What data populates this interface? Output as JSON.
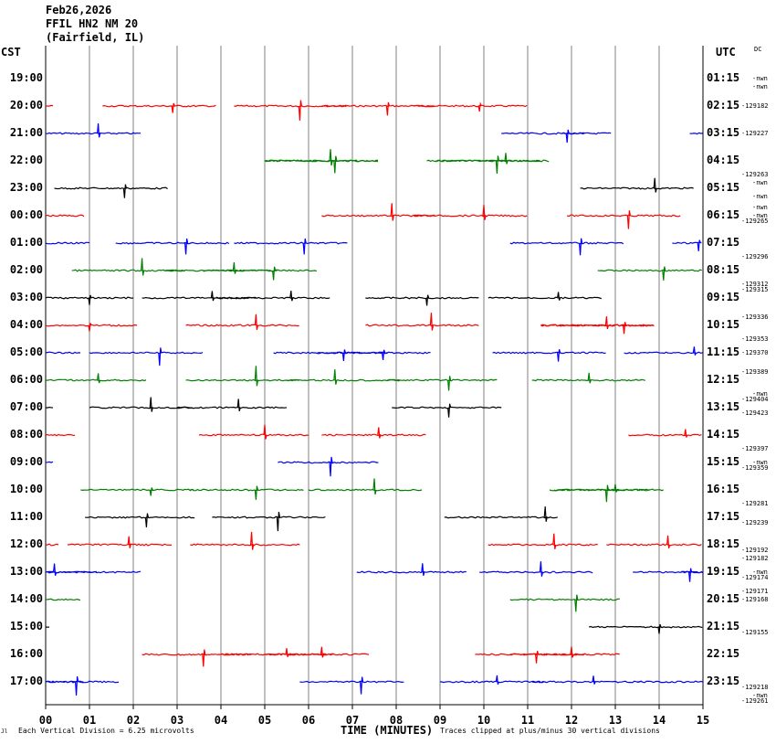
{
  "header": {
    "date": "Feb26,2026",
    "station": "FFIL HN2 NM 20",
    "location": "(Fairfield, IL)"
  },
  "left_tz": "CST",
  "right_tz": "UTC",
  "dc_label": "DC",
  "left_times": [
    "19:00",
    "20:00",
    "21:00",
    "22:00",
    "23:00",
    "00:00",
    "01:00",
    "02:00",
    "03:00",
    "04:00",
    "05:00",
    "06:00",
    "07:00",
    "08:00",
    "09:00",
    "10:00",
    "11:00",
    "12:00",
    "13:00",
    "14:00",
    "15:00",
    "16:00",
    "17:00"
  ],
  "right_times": [
    "01:15",
    "02:15",
    "03:15",
    "04:15",
    "05:15",
    "06:15",
    "07:15",
    "08:15",
    "09:15",
    "10:15",
    "11:15",
    "12:15",
    "13:15",
    "14:15",
    "15:15",
    "16:15",
    "17:15",
    "18:15",
    "19:15",
    "20:15",
    "21:15",
    "22:15",
    "23:15"
  ],
  "dc_values": [
    {
      "text": "-nwn",
      "row": 0.0
    },
    {
      "text": "-nwn",
      "row": 0.3
    },
    {
      "text": "-129182",
      "row": 1.0
    },
    {
      "text": "-129227",
      "row": 2.0
    },
    {
      "text": "-129263",
      "row": 3.5
    },
    {
      "text": "-nwn",
      "row": 3.8
    },
    {
      "text": "-nwn",
      "row": 4.3
    },
    {
      "text": "-nwn",
      "row": 4.7
    },
    {
      "text": "-nwn",
      "row": 5.0
    },
    {
      "text": "-129265",
      "row": 5.2
    },
    {
      "text": "-129296",
      "row": 6.5
    },
    {
      "text": "-129312",
      "row": 7.5
    },
    {
      "text": "-129315",
      "row": 7.7
    },
    {
      "text": "-129336",
      "row": 8.7
    },
    {
      "text": "-129353",
      "row": 9.5
    },
    {
      "text": "-129370",
      "row": 10.0
    },
    {
      "text": "-129389",
      "row": 10.7
    },
    {
      "text": "-nwn",
      "row": 11.5
    },
    {
      "text": "-129404",
      "row": 11.7
    },
    {
      "text": "-129423",
      "row": 12.2
    },
    {
      "text": "-129397",
      "row": 13.5
    },
    {
      "text": "-nwn",
      "row": 14.0
    },
    {
      "text": "-129359",
      "row": 14.2
    },
    {
      "text": "-129281",
      "row": 15.5
    },
    {
      "text": "-129239",
      "row": 16.2
    },
    {
      "text": "-129192",
      "row": 17.2
    },
    {
      "text": "-129182",
      "row": 17.5
    },
    {
      "text": "-nwn",
      "row": 18.0
    },
    {
      "text": "-129174",
      "row": 18.2
    },
    {
      "text": "-129171",
      "row": 18.7
    },
    {
      "text": "-129168",
      "row": 19.0
    },
    {
      "text": "-129155",
      "row": 20.2
    },
    {
      "text": "-129218",
      "row": 22.2
    },
    {
      "text": "-nwn",
      "row": 22.5
    },
    {
      "text": "-129261",
      "row": 22.7
    }
  ],
  "footer": {
    "division_note": "Each Vertical Division =    6.25 microvolts",
    "clip_note": "Traces clipped at plus/minus 30 vertical divisions",
    "logo": "Jl"
  },
  "colors": {
    "trace_cycle": [
      "#000000",
      "#ff0000",
      "#0000ff",
      "#008000"
    ],
    "grid": "#808080"
  },
  "chart_data": {
    "type": "line",
    "title": "Feb26,2026 FFIL HN2 NM 20 (Fairfield, IL)",
    "xlabel": "TIME (MINUTES)",
    "ylabel": "CST",
    "x_ticks": [
      "00",
      "01",
      "02",
      "03",
      "04",
      "05",
      "06",
      "07",
      "08",
      "09",
      "10",
      "11",
      "12",
      "13",
      "14",
      "15"
    ],
    "xlim": [
      0,
      15
    ],
    "row_interval_minutes": 30,
    "segments": [
      {
        "row": 1,
        "start": 0,
        "end": 0.2,
        "spike": null
      },
      {
        "row": 1,
        "start": 6.3,
        "end": 8.9,
        "spike": 7.8
      },
      {
        "row": 1,
        "start": 8.4,
        "end": 11.0,
        "spike": 9.9
      },
      {
        "row": 1,
        "start": 4.3,
        "end": 6.9,
        "spike": 5.8
      },
      {
        "row": 2,
        "start": 0,
        "end": 2.2,
        "spike": 1.2
      },
      {
        "row": 1,
        "start": 1.3,
        "end": 3.9,
        "spike": 2.9
      },
      {
        "row": 2,
        "start": 10.4,
        "end": 12.9,
        "spike": 11.9
      },
      {
        "row": 2,
        "start": 11.8,
        "end": 12.3,
        "spike": null
      },
      {
        "row": 2,
        "start": 14.7,
        "end": 15,
        "spike": null
      },
      {
        "row": 3,
        "start": 5.0,
        "end": 7.6,
        "spike": 6.6
      },
      {
        "row": 3,
        "start": 5.0,
        "end": 7.6,
        "spike": 6.5
      },
      {
        "row": 3,
        "start": 8.9,
        "end": 11.5,
        "spike": 10.5
      },
      {
        "row": 3,
        "start": 8.7,
        "end": 11.3,
        "spike": 10.3
      },
      {
        "row": 4,
        "start": 0.2,
        "end": 2.8,
        "spike": 1.8
      },
      {
        "row": 4,
        "start": 12.2,
        "end": 14.8,
        "spike": 13.9
      },
      {
        "row": 5,
        "start": 0,
        "end": 0.9,
        "spike": null
      },
      {
        "row": 5,
        "start": 8.4,
        "end": 11.0,
        "spike": 10.0
      },
      {
        "row": 5,
        "start": 11.9,
        "end": 14.5,
        "spike": 13.3
      },
      {
        "row": 5,
        "start": 6.3,
        "end": 8.9,
        "spike": 7.9
      },
      {
        "row": 6,
        "start": 1.6,
        "end": 4.2,
        "spike": 3.2
      },
      {
        "row": 6,
        "start": 4.3,
        "end": 6.9,
        "spike": 5.9
      },
      {
        "row": 6,
        "start": 14.3,
        "end": 15,
        "spike": 14.9
      },
      {
        "row": 6,
        "start": 0,
        "end": 1.0,
        "spike": null
      },
      {
        "row": 6,
        "start": 10.6,
        "end": 13.2,
        "spike": 12.2
      },
      {
        "row": 7,
        "start": 2.7,
        "end": 5.3,
        "spike": 4.3
      },
      {
        "row": 7,
        "start": 3.6,
        "end": 6.2,
        "spike": 5.2
      },
      {
        "row": 7,
        "start": 0.6,
        "end": 3.2,
        "spike": 2.2
      },
      {
        "row": 7,
        "start": 12.6,
        "end": 15,
        "spike": 14.1
      },
      {
        "row": 8,
        "start": 7.3,
        "end": 9.9,
        "spike": 8.7
      },
      {
        "row": 8,
        "start": 3.9,
        "end": 6.5,
        "spike": 5.6
      },
      {
        "row": 8,
        "start": 2.2,
        "end": 4.8,
        "spike": 3.8
      },
      {
        "row": 8,
        "start": 10.1,
        "end": 12.7,
        "spike": 11.7
      },
      {
        "row": 8,
        "start": 0,
        "end": 2.0,
        "spike": 1.0
      },
      {
        "row": 9,
        "start": 7.3,
        "end": 9.9,
        "spike": 8.8
      },
      {
        "row": 9,
        "start": 0,
        "end": 2.1,
        "spike": 1.0
      },
      {
        "row": 9,
        "start": 3.2,
        "end": 5.8,
        "spike": 4.8
      },
      {
        "row": 9,
        "start": 11.3,
        "end": 13.9,
        "spike": 12.8
      },
      {
        "row": 9,
        "start": 11.3,
        "end": 13.9,
        "spike": 13.2
      },
      {
        "row": 10,
        "start": 5.2,
        "end": 7.8,
        "spike": 6.8
      },
      {
        "row": 10,
        "start": 6.2,
        "end": 8.8,
        "spike": 7.7
      },
      {
        "row": 10,
        "start": 0,
        "end": 0.8,
        "spike": null
      },
      {
        "row": 10,
        "start": 1.0,
        "end": 3.6,
        "spike": 2.6
      },
      {
        "row": 10,
        "start": 10.2,
        "end": 12.8,
        "spike": 11.7
      },
      {
        "row": 10,
        "start": 13.2,
        "end": 15,
        "spike": 14.8
      },
      {
        "row": 11,
        "start": 0,
        "end": 2.3,
        "spike": 1.2
      },
      {
        "row": 11,
        "start": 7.8,
        "end": 10.3,
        "spike": 9.2
      },
      {
        "row": 11,
        "start": 3.2,
        "end": 5.8,
        "spike": 4.8
      },
      {
        "row": 11,
        "start": 5.5,
        "end": 8.1,
        "spike": 6.6
      },
      {
        "row": 11,
        "start": 11.1,
        "end": 13.7,
        "spike": 12.4
      },
      {
        "row": 12,
        "start": 7.9,
        "end": 10.4,
        "spike": 9.2
      },
      {
        "row": 12,
        "start": 3.0,
        "end": 5.5,
        "spike": 4.4
      },
      {
        "row": 12,
        "start": 1.0,
        "end": 3.4,
        "spike": 2.4
      },
      {
        "row": 12,
        "start": 0,
        "end": 0.2,
        "spike": null
      },
      {
        "row": 13,
        "start": 3.5,
        "end": 6.0,
        "spike": 5.0
      },
      {
        "row": 13,
        "start": 13.3,
        "end": 15,
        "spike": 14.6
      },
      {
        "row": 13,
        "start": 0,
        "end": 0.7,
        "spike": null
      },
      {
        "row": 13,
        "start": 6.3,
        "end": 8.7,
        "spike": 7.6
      },
      {
        "row": 14,
        "start": 5.3,
        "end": 7.6,
        "spike": 6.5
      },
      {
        "row": 14,
        "start": 0,
        "end": 0.2,
        "spike": null
      },
      {
        "row": 15,
        "start": 11.5,
        "end": 13.8,
        "spike": 12.8
      },
      {
        "row": 15,
        "start": 3.3,
        "end": 5.9,
        "spike": 4.8
      },
      {
        "row": 15,
        "start": 0.8,
        "end": 3.4,
        "spike": 2.4
      },
      {
        "row": 15,
        "start": 6.0,
        "end": 8.6,
        "spike": 7.5
      },
      {
        "row": 15,
        "start": 11.6,
        "end": 14.1,
        "spike": 13.0
      },
      {
        "row": 16,
        "start": 0.9,
        "end": 3.4,
        "spike": 2.3
      },
      {
        "row": 16,
        "start": 3.8,
        "end": 6.4,
        "spike": 5.3
      },
      {
        "row": 16,
        "start": 9.1,
        "end": 11.7,
        "spike": 11.4
      },
      {
        "row": 17,
        "start": 0.5,
        "end": 2.9,
        "spike": 1.9
      },
      {
        "row": 17,
        "start": 3.3,
        "end": 5.8,
        "spike": 4.7
      },
      {
        "row": 17,
        "start": 12.8,
        "end": 15,
        "spike": 14.2
      },
      {
        "row": 17,
        "start": 0,
        "end": 0.3,
        "spike": null
      },
      {
        "row": 17,
        "start": 10.1,
        "end": 12.6,
        "spike": 11.6
      },
      {
        "row": 18,
        "start": 0,
        "end": 1.2,
        "spike": 0.2
      },
      {
        "row": 18,
        "start": 9.9,
        "end": 12.5,
        "spike": 11.3
      },
      {
        "row": 18,
        "start": 14.5,
        "end": 15,
        "spike": null
      },
      {
        "row": 18,
        "start": 0,
        "end": 2.2,
        "spike": null
      },
      {
        "row": 18,
        "start": 7.1,
        "end": 9.6,
        "spike": 8.6
      },
      {
        "row": 18,
        "start": 13.4,
        "end": 15,
        "spike": 14.7
      },
      {
        "row": 19,
        "start": 0,
        "end": 0.8,
        "spike": null
      },
      {
        "row": 19,
        "start": 10.6,
        "end": 13.1,
        "spike": 12.1
      },
      {
        "row": 20,
        "start": 12.4,
        "end": 15,
        "spike": 14.0
      },
      {
        "row": 20,
        "start": 0,
        "end": 0.1,
        "spike": null
      },
      {
        "row": 21,
        "start": 5.0,
        "end": 7.4,
        "spike": 6.3
      },
      {
        "row": 21,
        "start": 9.8,
        "end": 12.3,
        "spike": 11.2
      },
      {
        "row": 21,
        "start": 10.6,
        "end": 13.1,
        "spike": 12.0
      },
      {
        "row": 21,
        "start": 4.0,
        "end": 6.6,
        "spike": 5.5
      },
      {
        "row": 21,
        "start": 2.2,
        "end": 4.7,
        "spike": 3.6
      },
      {
        "row": 22,
        "start": 5.8,
        "end": 8.2,
        "spike": 7.2
      },
      {
        "row": 22,
        "start": 0,
        "end": 0.9,
        "spike": null
      },
      {
        "row": 22,
        "start": 9.0,
        "end": 11.4,
        "spike": 10.3
      },
      {
        "row": 22,
        "start": 13.5,
        "end": 15,
        "spike": null
      },
      {
        "row": 22,
        "start": 0,
        "end": 1.7,
        "spike": 0.7
      },
      {
        "row": 22,
        "start": 11.1,
        "end": 13.6,
        "spike": 12.5
      }
    ]
  }
}
